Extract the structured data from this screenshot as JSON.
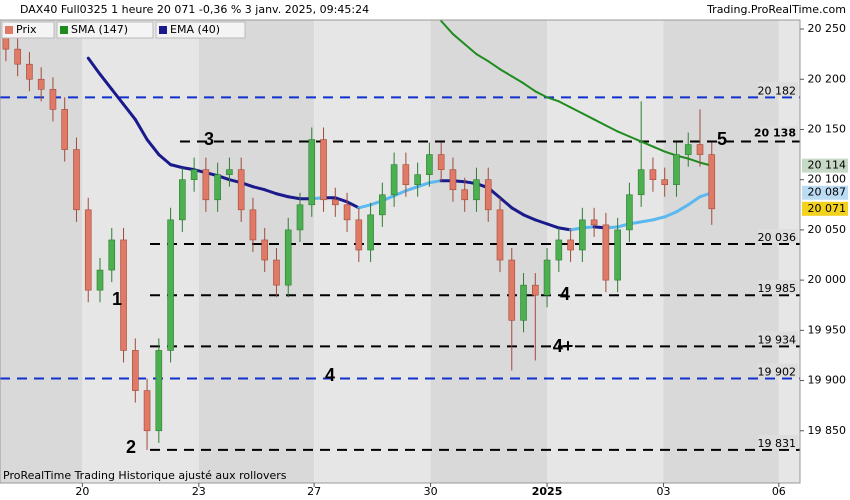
{
  "chart_data": {
    "type": "candlestick",
    "title": "DAX40 Full0325 1 heure 20 071 -0,36 % 3 janv. 2025, 09:45:24",
    "source": "Trading.ProRealTime.com",
    "footer": "ProRealTime Trading  Historique ajusté aux rollovers",
    "x": [
      0,
      1,
      2,
      3,
      4,
      5,
      6,
      7,
      8,
      9,
      10,
      11,
      12,
      13,
      14,
      15,
      16,
      17,
      18,
      19,
      20,
      21,
      22,
      23,
      24,
      25,
      26,
      27,
      28,
      29,
      30,
      31,
      32,
      33,
      34,
      35,
      36,
      37,
      38,
      39,
      40,
      41,
      42,
      43,
      44,
      45,
      46,
      47,
      48,
      49,
      50,
      51,
      52,
      53,
      54,
      55,
      56,
      57,
      58,
      59,
      60
    ],
    "open": [
      20245,
      20230,
      20215,
      20200,
      20190,
      20170,
      20130,
      20070,
      19990,
      20010,
      20040,
      19930,
      19890,
      19850,
      19930,
      20060,
      20100,
      20110,
      20080,
      20105,
      20110,
      20070,
      20040,
      20020,
      19995,
      20050,
      20075,
      20140,
      20080,
      20075,
      20060,
      20030,
      20065,
      20085,
      20115,
      20095,
      20105,
      20125,
      20110,
      20090,
      20080,
      20100,
      20070,
      20020,
      19960,
      19995,
      19985,
      20020,
      20040,
      20030,
      20060,
      20055,
      20000,
      20050,
      20085,
      20110,
      20100,
      20095,
      20125,
      20135,
      20125
    ],
    "high": [
      20250,
      20242,
      20227,
      20212,
      20202,
      20182,
      20142,
      20082,
      20022,
      20052,
      20052,
      19942,
      19902,
      19942,
      20072,
      20112,
      20122,
      20122,
      20117,
      20122,
      20122,
      20082,
      20052,
      20032,
      20062,
      20087,
      20152,
      20152,
      20092,
      20087,
      20072,
      20077,
      20097,
      20127,
      20127,
      20117,
      20137,
      20137,
      20122,
      20102,
      20112,
      20112,
      20082,
      20032,
      20007,
      20007,
      20032,
      20052,
      20052,
      20072,
      20072,
      20067,
      20062,
      20097,
      20178,
      20122,
      20112,
      20137,
      20147,
      20170,
      20137
    ],
    "low": [
      20218,
      20203,
      20188,
      20178,
      20158,
      20118,
      20058,
      19978,
      19978,
      19998,
      19918,
      19878,
      19831,
      19838,
      19918,
      20048,
      20088,
      20068,
      20068,
      20093,
      20058,
      20028,
      20008,
      19983,
      19983,
      20038,
      20063,
      20068,
      20063,
      20048,
      20018,
      20018,
      20053,
      20073,
      20083,
      20083,
      20093,
      20098,
      20078,
      20068,
      20068,
      20058,
      20008,
      19910,
      19948,
      19920,
      19973,
      20008,
      20018,
      20018,
      20043,
      19988,
      19988,
      20038,
      20073,
      20088,
      20083,
      20083,
      20113,
      20113,
      20055
    ],
    "close": [
      20230,
      20215,
      20200,
      20190,
      20170,
      20130,
      20070,
      19990,
      20010,
      20040,
      19930,
      19890,
      19850,
      19930,
      20060,
      20100,
      20110,
      20080,
      20105,
      20110,
      20070,
      20040,
      20020,
      19995,
      20050,
      20075,
      20140,
      20080,
      20075,
      20060,
      20030,
      20065,
      20085,
      20115,
      20095,
      20105,
      20125,
      20110,
      20090,
      20080,
      20100,
      20070,
      20020,
      19960,
      19995,
      19985,
      20020,
      20040,
      20030,
      20060,
      20055,
      20000,
      20050,
      20085,
      20110,
      20100,
      20095,
      20125,
      20135,
      20125,
      20071
    ],
    "up_color": "#4caf50",
    "down_color": "#e07a66",
    "legend": [
      "Prix"
    ],
    "series": [
      {
        "name": "SMA (147)",
        "color": "#1e8c1e",
        "values": [
          null,
          null,
          null,
          null,
          null,
          null,
          null,
          null,
          null,
          null,
          null,
          null,
          null,
          null,
          null,
          null,
          null,
          null,
          null,
          null,
          null,
          null,
          null,
          null,
          null,
          null,
          null,
          null,
          null,
          null,
          null,
          null,
          null,
          null,
          null,
          null,
          null,
          20258,
          20245,
          20235,
          20225,
          20218,
          20210,
          20203,
          20196,
          20188,
          20182,
          20178,
          20172,
          20166,
          20160,
          20154,
          20148,
          20143,
          20138,
          20133,
          20128,
          20124,
          20121,
          20117,
          20114
        ]
      },
      {
        "name": "EMA (40)",
        "color": "#1a1a8c",
        "rising_color": "#5bb8f0",
        "values": [
          null,
          null,
          null,
          null,
          null,
          null,
          null,
          20221,
          20205,
          20190,
          20175,
          20160,
          20140,
          20125,
          20115,
          20112,
          20110,
          20107,
          20104,
          20100,
          20097,
          20093,
          20090,
          20086,
          20083,
          20081,
          20081,
          20082,
          20082,
          20078,
          20072,
          20075,
          20079,
          20084,
          20089,
          20093,
          20097,
          20099,
          20099,
          20098,
          20096,
          20092,
          20082,
          20072,
          20065,
          20060,
          20056,
          20052,
          20050,
          20052,
          20053,
          20052,
          20053,
          20056,
          20058,
          20060,
          20063,
          20068,
          20075,
          20083,
          20087
        ]
      }
    ],
    "levels": [
      {
        "value": 20182,
        "label": "20 182",
        "color": "#1030d0"
      },
      {
        "value": 20138,
        "label": "20 138",
        "color": "#000000"
      },
      {
        "value": 20036,
        "label": "20 036",
        "color": "#000000"
      },
      {
        "value": 19985,
        "label": "19 985",
        "color": "#000000"
      },
      {
        "value": 19934,
        "label": "19 934",
        "color": "#000000"
      },
      {
        "value": 19902,
        "label": "19 902",
        "color": "#1030d0"
      },
      {
        "value": 19831,
        "label": "19 831",
        "color": "#000000"
      }
    ],
    "annotations": [
      "1",
      "2",
      "3",
      "4",
      "4",
      "4+",
      "5"
    ],
    "tags": [
      {
        "value": 20114,
        "label": "20 114",
        "color": "#c6d9c6"
      },
      {
        "value": 20087,
        "label": "20 087",
        "color": "#bcdcf4"
      },
      {
        "value": 20071,
        "label": "20 071",
        "color": "#f2d21e"
      }
    ],
    "xlim": [
      -0.5,
      67.5
    ],
    "xticks": [
      {
        "value": 6.5,
        "label": "20"
      },
      {
        "value": 16.4,
        "label": "23"
      },
      {
        "value": 26.2,
        "label": "27"
      },
      {
        "value": 36.1,
        "label": "30"
      },
      {
        "value": 46,
        "label": "2025"
      },
      {
        "value": 55.9,
        "label": "03"
      },
      {
        "value": 65.7,
        "label": "06"
      }
    ],
    "ylim": [
      19798,
      20259
    ],
    "yticks": [
      {
        "value": 20250,
        "label": "20 250"
      },
      {
        "value": 20200,
        "label": "20 200"
      },
      {
        "value": 20150,
        "label": "20 150"
      },
      {
        "value": 20100,
        "label": "20 100"
      },
      {
        "value": 20050,
        "label": "20 050"
      },
      {
        "value": 20000,
        "label": "20 000"
      },
      {
        "value": 19950,
        "label": "19 950"
      },
      {
        "value": 19900,
        "label": "19 900"
      },
      {
        "value": 19850,
        "label": "19 850"
      }
    ]
  }
}
